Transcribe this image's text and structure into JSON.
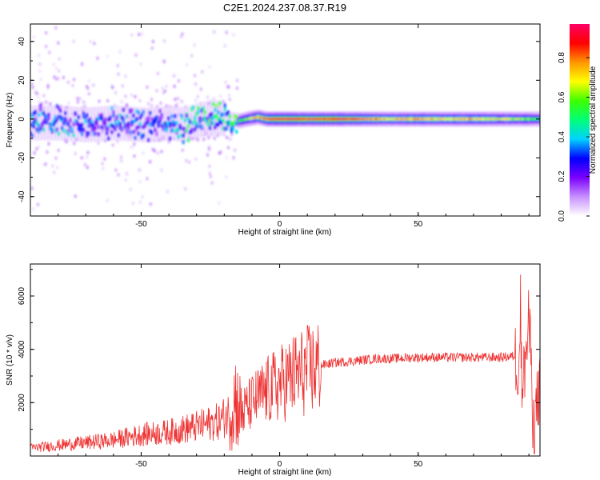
{
  "title": "C2E1.2024.237.08.37.R19",
  "chart_data": [
    {
      "type": "heatmap",
      "xlabel": "Height of straight line (km)",
      "ylabel": "Frequency (Hz)",
      "xlim": [
        -90,
        94
      ],
      "ylim": [
        -50,
        49
      ],
      "xticks": [
        -50,
        0,
        50
      ],
      "xtick_labels": [
        "-50",
        "0",
        "50"
      ],
      "yticks": [
        -40,
        -20,
        0,
        20,
        40
      ],
      "ytick_labels": [
        "-40",
        "-20",
        "0",
        "20",
        "40"
      ],
      "colorbar": {
        "label": "Normalized spectral amplitude",
        "range": [
          0,
          0.97
        ],
        "ticks": [
          0.0,
          0.2,
          0.4,
          0.6,
          0.8
        ],
        "tick_labels": [
          "0.0",
          "0.2",
          "0.4",
          "0.6",
          "0.8"
        ],
        "colormap": [
          "#ffffff",
          "#c890ff",
          "#7a00ff",
          "#0000ff",
          "#00d2ff",
          "#00ff78",
          "#3cff00",
          "#ffff00",
          "#ff9600",
          "#ff0000",
          "#ff0064"
        ]
      },
      "ridge": {
        "x": [
          -90,
          -80,
          -70,
          -60,
          -50,
          -45,
          -40,
          -35,
          -30,
          -25,
          -20,
          -15,
          -12,
          -8,
          -5,
          -2,
          0,
          5,
          10,
          20,
          30,
          40,
          50,
          60,
          70,
          80,
          90,
          94
        ],
        "y": [
          -2,
          -2,
          -3,
          -2,
          -3,
          -3,
          -2,
          -3,
          -1,
          1,
          0,
          -1,
          0,
          1,
          0,
          0,
          0,
          0,
          0,
          0,
          0,
          0,
          0,
          0,
          0,
          0,
          0,
          0
        ],
        "amplitude": [
          0.35,
          0.35,
          0.33,
          0.35,
          0.33,
          0.32,
          0.35,
          0.4,
          0.45,
          0.5,
          0.5,
          0.55,
          0.6,
          0.75,
          0.85,
          0.9,
          0.95,
          0.95,
          0.85,
          0.9,
          0.8,
          0.7,
          0.75,
          0.7,
          0.72,
          0.65,
          0.6,
          0.5
        ]
      }
    },
    {
      "type": "line",
      "xlabel": "Height of straight line (km)",
      "ylabel": "SNR (10 * v/v)",
      "xlim": [
        -90,
        94
      ],
      "ylim": [
        0,
        7200
      ],
      "xticks": [
        -50,
        0,
        50
      ],
      "xtick_labels": [
        "-50",
        "0",
        "50"
      ],
      "yticks": [
        2000,
        4000,
        6000
      ],
      "ytick_labels": [
        "2000",
        "4000",
        "6000"
      ],
      "line_color": "#ee3333",
      "series": [
        {
          "x": [
            -90,
            -80,
            -70,
            -60,
            -50,
            -40,
            -30,
            -22,
            -18,
            -16,
            -14,
            -10,
            -5,
            0,
            5,
            10,
            15,
            20,
            25,
            30,
            35,
            40,
            50,
            60,
            70,
            80,
            85,
            88,
            90,
            92,
            94
          ],
          "y": [
            300,
            400,
            500,
            600,
            800,
            900,
            1100,
            1300,
            1600,
            2200,
            1600,
            2000,
            2400,
            2700,
            3000,
            3200,
            3400,
            3500,
            3550,
            3600,
            3650,
            3650,
            3700,
            3700,
            3700,
            3700,
            3750,
            2800,
            5000,
            1200,
            2700
          ]
        }
      ]
    }
  ]
}
